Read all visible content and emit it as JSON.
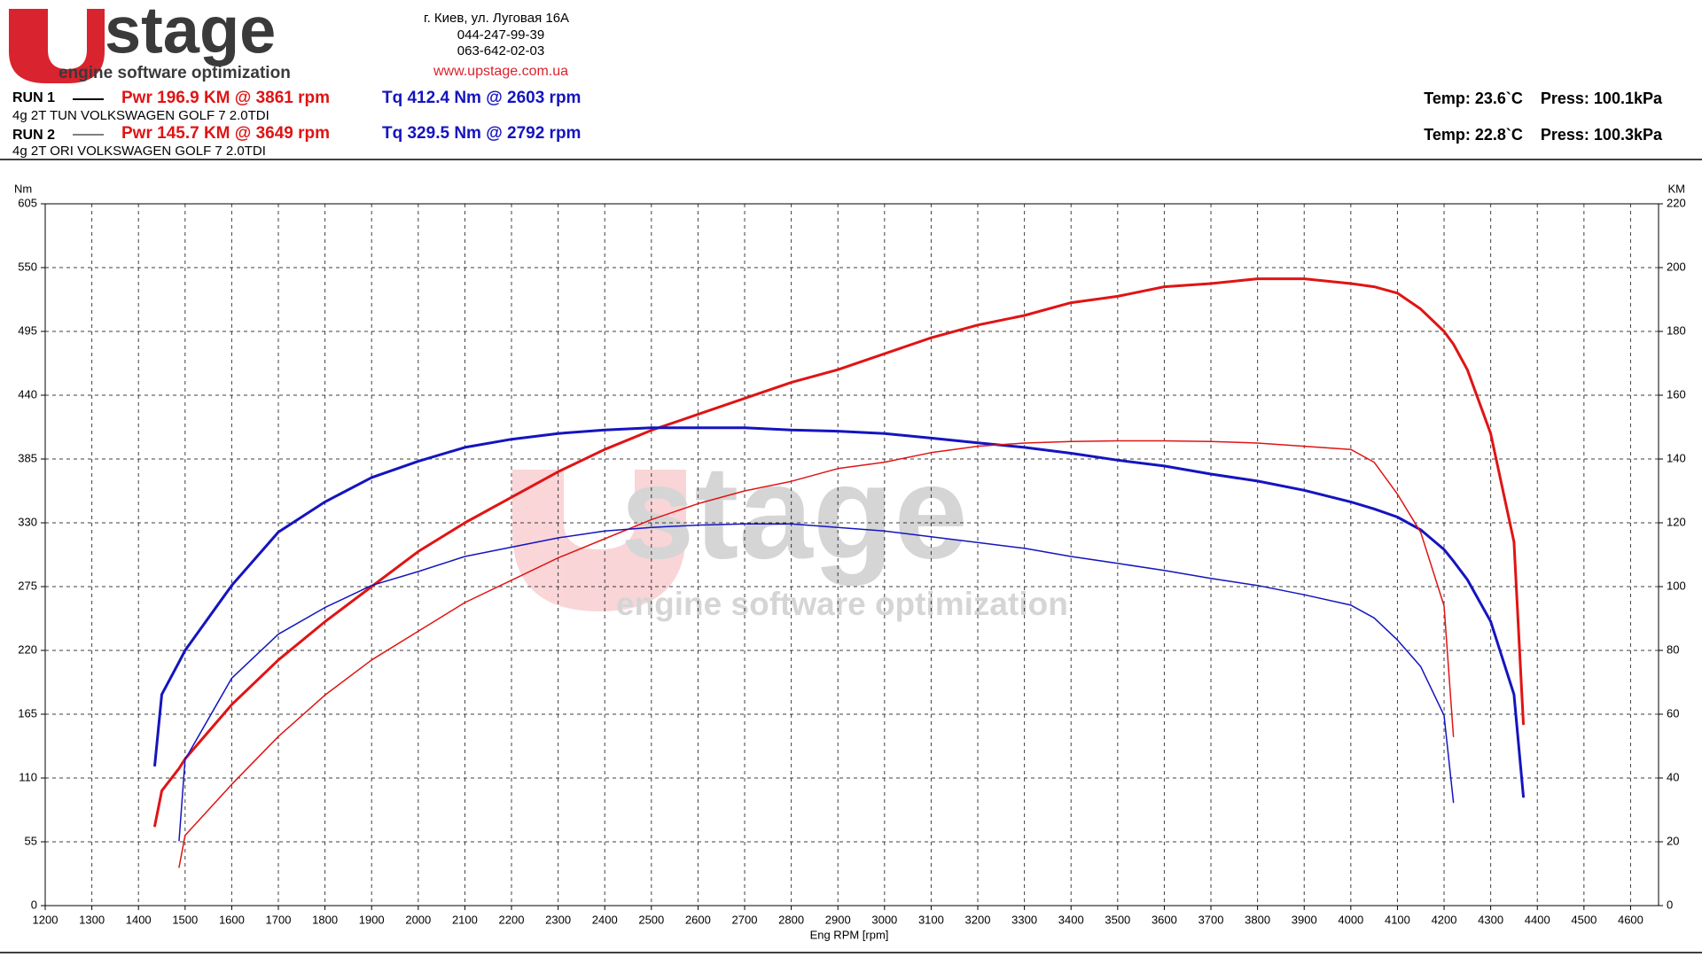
{
  "header": {
    "logo": "stage",
    "tagline": "engine software optimization",
    "address": [
      "г. Киев, ул. Луговая 16А",
      "044-247-99-39",
      "063-642-02-03"
    ],
    "website": "www.upstage.com.ua",
    "watermark": "stage",
    "watermark_tagline": "engine software optimization"
  },
  "runs": [
    {
      "label": "RUN 1",
      "description": "4g  2T TUN VOLKSWAGEN GOLF 7 2.0TDI",
      "conditions": "Temp: 23.6`C    Press: 100.1kPa"
    },
    {
      "label": "RUN 2",
      "description": "4g  2T ORI VOLKSWAGEN GOLF 7 2.0TDI",
      "conditions": "Temp: 22.8`C    Press: 100.3kPa"
    }
  ],
  "chart_data": {
    "type": "line",
    "x_label": "Eng RPM [rpm]",
    "y_label": "Nm",
    "y2_label": "KM",
    "x": [
      1435,
      1450,
      1487,
      1500,
      1600,
      1700,
      1800,
      1900,
      2000,
      2100,
      2200,
      2300,
      2400,
      2500,
      2600,
      2700,
      2800,
      2900,
      3000,
      3100,
      3200,
      3300,
      3400,
      3500,
      3600,
      3700,
      3800,
      3900,
      4000,
      4050,
      4100,
      4150,
      4200,
      4220,
      4250,
      4300,
      4350,
      4370
    ],
    "xlim": [
      1200,
      4660
    ],
    "xticks": [
      1200,
      1300,
      1400,
      1500,
      1600,
      1700,
      1800,
      1900,
      2000,
      2100,
      2200,
      2300,
      2400,
      2500,
      2600,
      2700,
      2800,
      2900,
      3000,
      3100,
      3200,
      3300,
      3400,
      3500,
      3600,
      3700,
      3800,
      3900,
      4000,
      4100,
      4200,
      4300,
      4400,
      4500,
      4600
    ],
    "ylim": [
      0,
      605
    ],
    "yticks": [
      0,
      55,
      110,
      165,
      220,
      275,
      330,
      385,
      440,
      495,
      550,
      605
    ],
    "y2lim": [
      0,
      220
    ],
    "y2ticks": [
      0,
      20,
      40,
      60,
      80,
      100,
      120,
      140,
      160,
      180,
      200,
      220
    ],
    "grid": true,
    "series": [
      {
        "name": "Pwr  196.9 KM @ 3861 rpm",
        "color": "#e01414",
        "axis": "y2",
        "width": 3,
        "values": [
          25,
          36,
          43,
          46,
          63,
          77,
          89,
          100,
          111,
          120,
          128,
          136,
          143,
          149,
          154,
          159,
          164,
          168,
          173,
          178,
          182,
          185,
          189,
          191,
          194,
          195,
          196.5,
          196.5,
          195,
          194,
          192,
          187,
          180,
          176,
          168,
          148,
          114,
          57
        ]
      },
      {
        "name": "Tq 412.4 Nm @ 2603 rpm",
        "color": "#1414c0",
        "width": 3,
        "values": [
          121,
          182,
          210,
          220,
          276,
          322,
          348,
          369,
          383,
          395,
          402,
          407,
          410,
          412,
          412,
          412,
          410,
          409,
          407,
          403,
          399,
          395,
          390,
          384,
          379,
          372,
          366,
          358,
          348,
          342,
          335,
          324,
          307,
          297,
          281,
          245,
          182,
          94
        ]
      },
      {
        "name": "Pwr  145.7 KM @ 3649 rpm",
        "color": "#e01414",
        "axis": "y2",
        "width": 1.5,
        "values": [
          null,
          null,
          12,
          22,
          38,
          53,
          66,
          77,
          86,
          95,
          102,
          109,
          115,
          121,
          126,
          130,
          133,
          137,
          139,
          142,
          144,
          145,
          145.5,
          145.7,
          145.7,
          145.5,
          145,
          144,
          143,
          139,
          129,
          117,
          94,
          53,
          null,
          null,
          null,
          null
        ]
      },
      {
        "name": "Tq 329.5 Nm @ 2792 rpm",
        "color": "#1414c0",
        "width": 1.5,
        "values": [
          null,
          null,
          56,
          126,
          196,
          234,
          257,
          276,
          288,
          301,
          309,
          317,
          323,
          326,
          328,
          329,
          329,
          326,
          323,
          318,
          313,
          308,
          301,
          295,
          289,
          282,
          276,
          268,
          259,
          248,
          229,
          206,
          164,
          89,
          null,
          null,
          null,
          null
        ]
      }
    ]
  }
}
